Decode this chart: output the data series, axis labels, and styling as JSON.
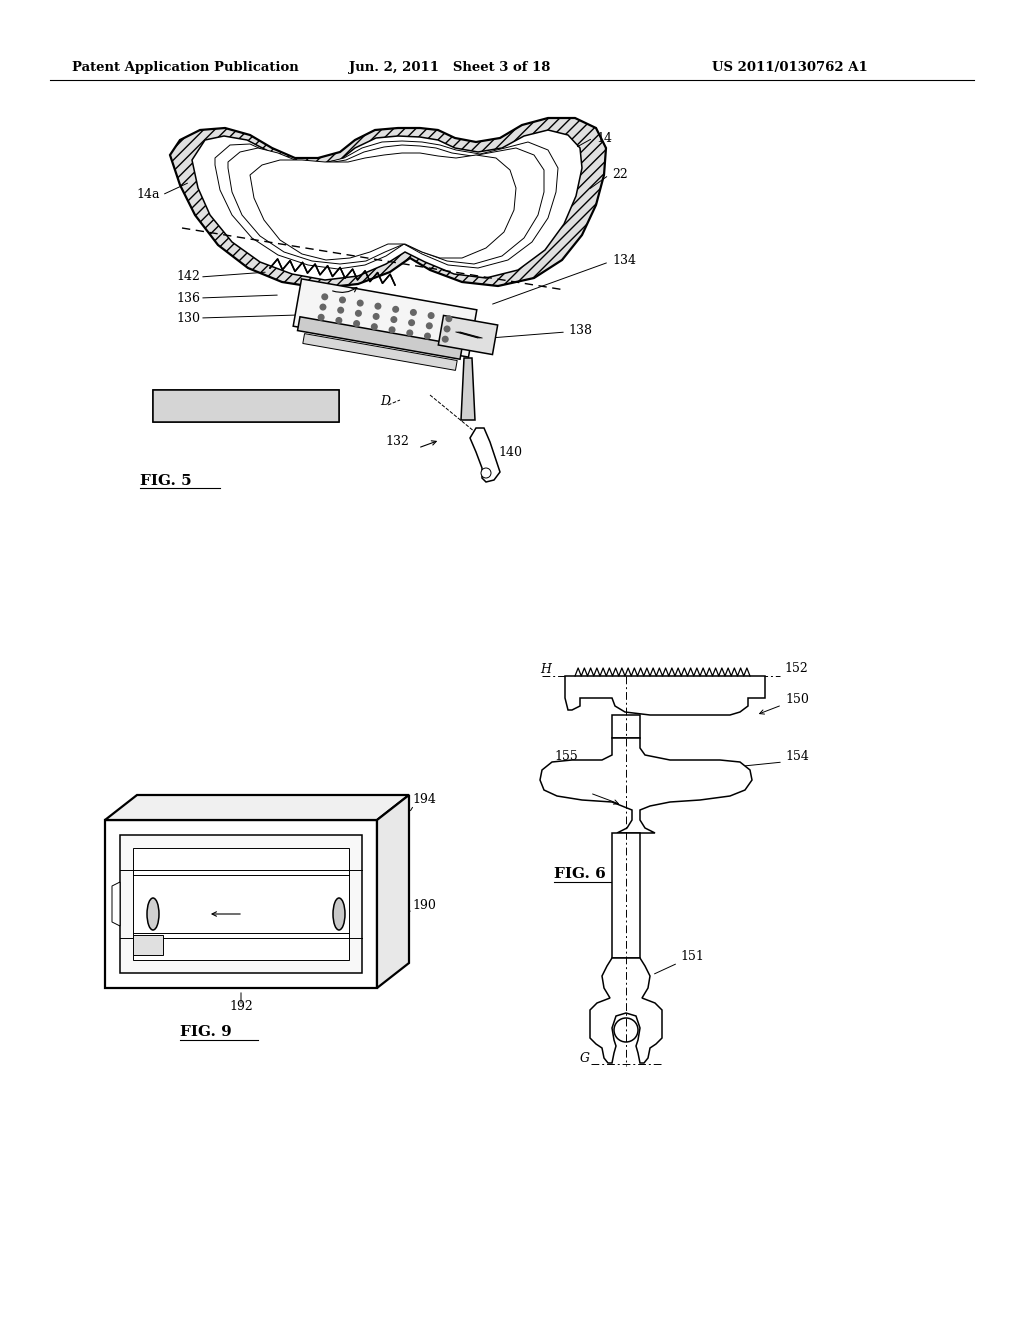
{
  "background_color": "#ffffff",
  "header_left": "Patent Application Publication",
  "header_mid": "Jun. 2, 2011   Sheet 3 of 18",
  "header_right": "US 2011/0130762 A1",
  "fig5_label": "FIG. 5",
  "fig6_label": "FIG. 6",
  "fig9_label": "FIG. 9",
  "text_color": "#000000",
  "line_color": "#000000"
}
